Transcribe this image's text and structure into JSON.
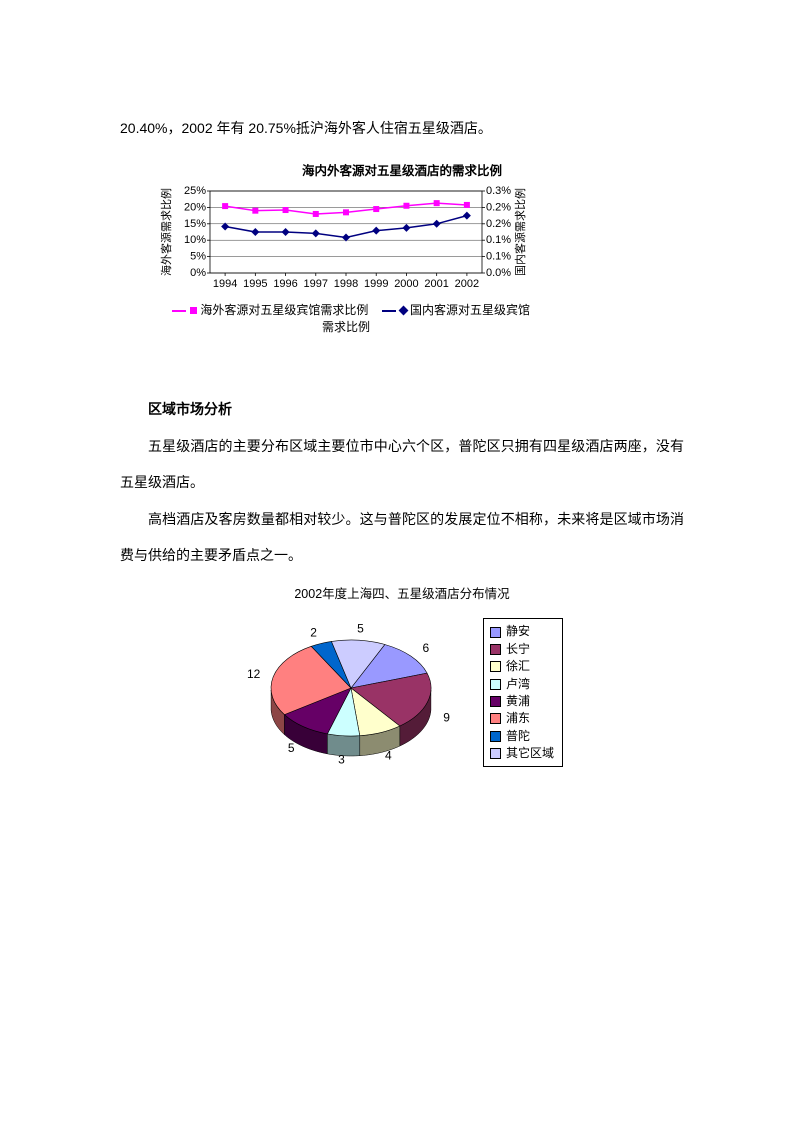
{
  "intro_text": "20.40%，2002 年有 20.75%抵沪海外客人住宿五星级酒店。",
  "chart1": {
    "type": "line",
    "title": "海内外客源对五星级酒店的需求比例",
    "categories": [
      "1994",
      "1995",
      "1996",
      "1997",
      "1998",
      "1999",
      "2000",
      "2001",
      "2002"
    ],
    "y_left_label": "海外客源需求比例",
    "y_right_label": "国内客源需求比例",
    "y_left_ticks": [
      "0%",
      "5%",
      "10%",
      "15%",
      "20%",
      "25%"
    ],
    "y_left_max": 25,
    "y_right_ticks": [
      "0.0%",
      "0.1%",
      "0.1%",
      "0.2%",
      "0.2%",
      "0.3%"
    ],
    "y_right_max": 0.3,
    "series": [
      {
        "name": "海外客源对五星级宾馆需求比例",
        "color": "#ff00ff",
        "marker": "square",
        "values": [
          20.4,
          19.0,
          19.2,
          18.0,
          18.5,
          19.5,
          20.5,
          21.3,
          20.75
        ]
      },
      {
        "name": "国内客源对五星级宾馆需求比例",
        "color": "#000080",
        "marker": "diamond",
        "values": [
          0.17,
          0.15,
          0.15,
          0.145,
          0.13,
          0.155,
          0.165,
          0.18,
          0.21
        ]
      }
    ],
    "grid_color": "#000000",
    "background_color": "#ffffff",
    "label_fontsize": 11,
    "tick_fontsize": 11
  },
  "section_heading": "区域市场分析",
  "para2": "五星级酒店的主要分布区域主要位市中心六个区，普陀区只拥有四星级酒店两座，没有五星级酒店。",
  "para3": "高档酒店及客房数量都相对较少。这与普陀区的发展定位不相称，未来将是区域市场消费与供给的主要矛盾点之一。",
  "chart2": {
    "type": "pie",
    "title": "2002年度上海四、五星级酒店分布情况",
    "slices": [
      {
        "label": "静安",
        "value": 6,
        "color": "#9999ff"
      },
      {
        "label": "长宁",
        "value": 9,
        "color": "#993366"
      },
      {
        "label": "徐汇",
        "value": 4,
        "color": "#ffffcc"
      },
      {
        "label": "卢湾",
        "value": 3,
        "color": "#ccffff"
      },
      {
        "label": "黄浦",
        "value": 5,
        "color": "#660066"
      },
      {
        "label": "浦东",
        "value": 12,
        "color": "#ff8080"
      },
      {
        "label": "普陀",
        "value": 2,
        "color": "#0066cc"
      },
      {
        "label": "其它区域",
        "value": 5,
        "color": "#ccccff"
      }
    ],
    "side_color": "#555555",
    "label_fontsize": 12,
    "start_angle_deg": -65,
    "direction": "clockwise"
  }
}
